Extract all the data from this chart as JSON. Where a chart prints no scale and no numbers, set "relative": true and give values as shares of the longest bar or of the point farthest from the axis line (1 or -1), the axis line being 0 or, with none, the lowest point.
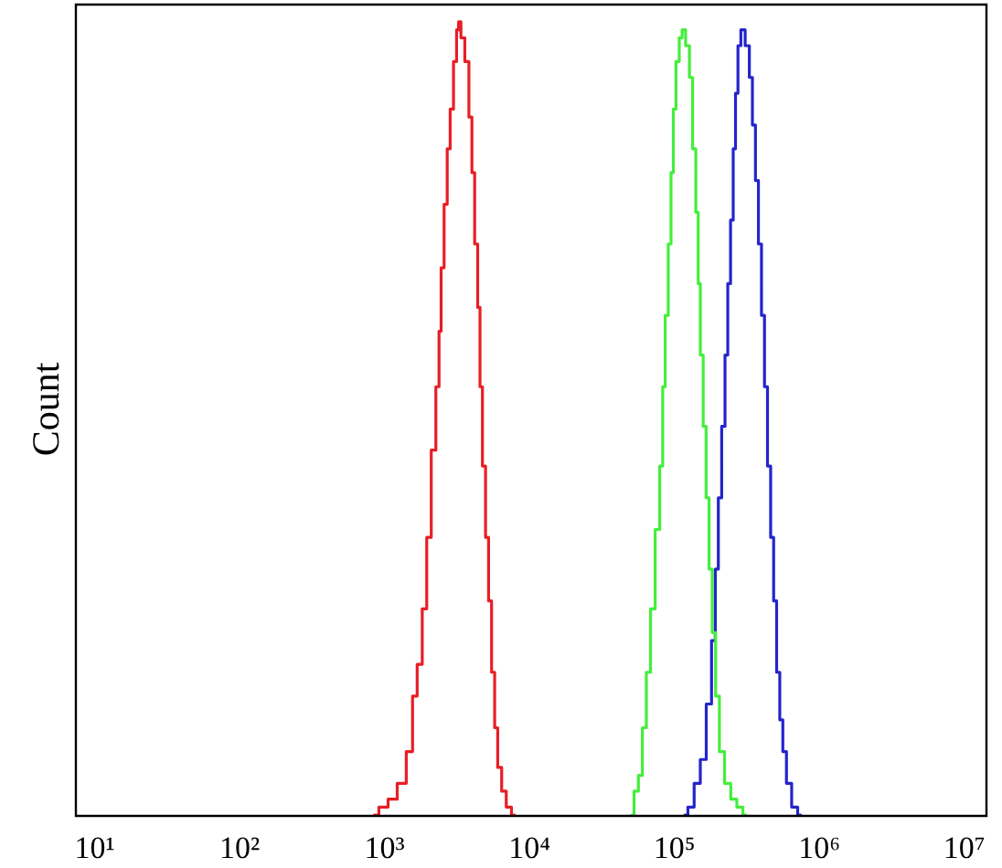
{
  "chart_data": {
    "type": "step",
    "ylabel": "Count",
    "log": "x",
    "relative": true,
    "legend": false,
    "xlim": [
      7.3,
      14000000
    ],
    "xticks": [
      {
        "value": 10,
        "label": "10¹"
      },
      {
        "value": 100,
        "label": "10²"
      },
      {
        "value": 1000,
        "label": "10³"
      },
      {
        "value": 10000,
        "label": "10⁴"
      },
      {
        "value": 100000,
        "label": "10⁵"
      },
      {
        "value": 1000000,
        "label": "10⁶"
      },
      {
        "value": 10000000,
        "label": "10⁷"
      }
    ],
    "series": [
      {
        "color": "#e81e25",
        "x": [
          850,
          980,
          1140,
          1310,
          1520,
          1600,
          1760,
          1880,
          2030,
          2170,
          2350,
          2400,
          2510,
          2640,
          2770,
          2900,
          3080,
          3200,
          3280,
          3450,
          3710,
          3930,
          4080,
          4290,
          4490,
          4620,
          4850,
          5100,
          5340,
          5610,
          5890,
          6180,
          6680,
          7150,
          7880
        ],
        "values": [
          0,
          0.01,
          0.02,
          0.04,
          0.08,
          0.15,
          0.19,
          0.26,
          0.35,
          0.46,
          0.54,
          0.61,
          0.69,
          0.77,
          0.84,
          0.89,
          0.95,
          0.99,
          1,
          0.98,
          0.95,
          0.88,
          0.81,
          0.72,
          0.64,
          0.54,
          0.44,
          0.35,
          0.27,
          0.18,
          0.11,
          0.06,
          0.03,
          0.01,
          0
        ]
      },
      {
        "color": "#44ee3c",
        "x": [
          50900,
          54500,
          58400,
          61900,
          66200,
          70800,
          76600,
          81800,
          84300,
          88500,
          92900,
          96600,
          100000,
          105000,
          111000,
          115000,
          124000,
          130000,
          137000,
          144000,
          148000,
          154000,
          162000,
          169000,
          178000,
          187000,
          198000,
          211000,
          233000,
          257000,
          283000,
          311000
        ],
        "values": [
          0,
          0.03,
          0.05,
          0.11,
          0.18,
          0.26,
          0.36,
          0.44,
          0.54,
          0.63,
          0.72,
          0.81,
          0.89,
          0.95,
          0.98,
          0.99,
          0.97,
          0.93,
          0.84,
          0.76,
          0.67,
          0.58,
          0.49,
          0.4,
          0.31,
          0.23,
          0.15,
          0.08,
          0.04,
          0.02,
          0.01,
          0
        ]
      },
      {
        "color": "#2424cc",
        "x": [
          118000,
          130000,
          144000,
          158000,
          174000,
          187000,
          196000,
          206000,
          218000,
          229000,
          238000,
          250000,
          259000,
          269000,
          280000,
          295000,
          321000,
          337000,
          354000,
          371000,
          389000,
          409000,
          428000,
          450000,
          473000,
          495000,
          520000,
          547000,
          573000,
          614000,
          676000,
          743000
        ],
        "values": [
          0,
          0.01,
          0.04,
          0.07,
          0.14,
          0.22,
          0.31,
          0.4,
          0.49,
          0.58,
          0.67,
          0.75,
          0.84,
          0.91,
          0.97,
          0.99,
          0.97,
          0.93,
          0.87,
          0.8,
          0.72,
          0.63,
          0.54,
          0.44,
          0.35,
          0.27,
          0.18,
          0.12,
          0.08,
          0.04,
          0.01,
          0
        ]
      }
    ]
  }
}
